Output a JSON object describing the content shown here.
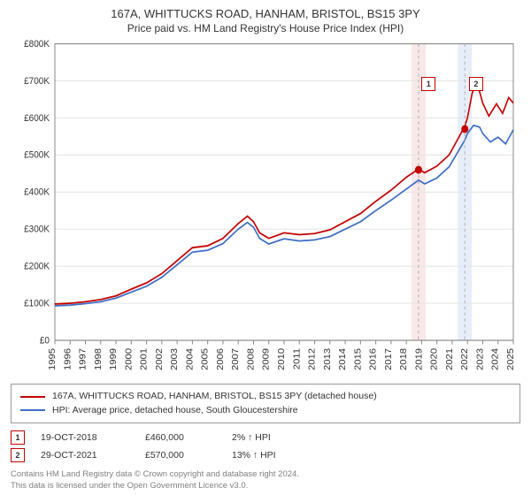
{
  "title": "167A, WHITTUCKS ROAD, HANHAM, BRISTOL, BS15 3PY",
  "subtitle": "Price paid vs. HM Land Registry's House Price Index (HPI)",
  "chart": {
    "type": "line",
    "background_color": "#ffffff",
    "grid_color": "#e6e6e6",
    "axis_color": "#888888",
    "label_fontsize": 10,
    "xlim": [
      1995,
      2025
    ],
    "ylim": [
      0,
      800000
    ],
    "ytick_step": 100000,
    "ytick_labels": [
      "£0",
      "£100K",
      "£200K",
      "£300K",
      "£400K",
      "£500K",
      "£600K",
      "£700K",
      "£800K"
    ],
    "xtick_step": 1,
    "xtick_labels": [
      "1995",
      "1996",
      "1997",
      "1998",
      "1999",
      "2000",
      "2001",
      "2002",
      "2003",
      "2004",
      "2005",
      "2006",
      "2007",
      "2008",
      "2009",
      "2010",
      "2011",
      "2012",
      "2013",
      "2014",
      "2015",
      "2016",
      "2017",
      "2018",
      "2019",
      "2020",
      "2021",
      "2022",
      "2023",
      "2024",
      "2025"
    ],
    "series": [
      {
        "name": "price_paid",
        "color": "#c40000",
        "line_width": 1.6,
        "points": [
          [
            1995,
            98000
          ],
          [
            1996,
            100000
          ],
          [
            1997,
            104000
          ],
          [
            1998,
            110000
          ],
          [
            1999,
            120000
          ],
          [
            2000,
            138000
          ],
          [
            2001,
            155000
          ],
          [
            2002,
            180000
          ],
          [
            2003,
            215000
          ],
          [
            2004,
            250000
          ],
          [
            2005,
            255000
          ],
          [
            2006,
            275000
          ],
          [
            2007,
            315000
          ],
          [
            2007.6,
            335000
          ],
          [
            2008,
            320000
          ],
          [
            2008.4,
            290000
          ],
          [
            2009,
            275000
          ],
          [
            2010,
            290000
          ],
          [
            2011,
            285000
          ],
          [
            2012,
            288000
          ],
          [
            2013,
            298000
          ],
          [
            2014,
            320000
          ],
          [
            2015,
            342000
          ],
          [
            2016,
            375000
          ],
          [
            2017,
            405000
          ],
          [
            2018,
            440000
          ],
          [
            2018.8,
            462000
          ],
          [
            2019.2,
            452000
          ],
          [
            2020,
            470000
          ],
          [
            2020.8,
            500000
          ],
          [
            2021.4,
            545000
          ],
          [
            2021.83,
            578000
          ],
          [
            2022,
            600000
          ],
          [
            2022.3,
            665000
          ],
          [
            2022.6,
            700000
          ],
          [
            2023,
            640000
          ],
          [
            2023.4,
            605000
          ],
          [
            2023.9,
            638000
          ],
          [
            2024.3,
            612000
          ],
          [
            2024.7,
            655000
          ],
          [
            2025,
            640000
          ]
        ]
      },
      {
        "name": "hpi",
        "color": "#3e6ec4",
        "line_width": 1.6,
        "points": [
          [
            1995,
            93000
          ],
          [
            1996,
            95000
          ],
          [
            1997,
            99000
          ],
          [
            1998,
            104000
          ],
          [
            1999,
            114000
          ],
          [
            2000,
            130000
          ],
          [
            2001,
            146000
          ],
          [
            2002,
            170000
          ],
          [
            2003,
            204000
          ],
          [
            2004,
            238000
          ],
          [
            2005,
            243000
          ],
          [
            2006,
            261000
          ],
          [
            2007,
            300000
          ],
          [
            2007.6,
            318000
          ],
          [
            2008,
            305000
          ],
          [
            2008.4,
            275000
          ],
          [
            2009,
            260000
          ],
          [
            2010,
            274000
          ],
          [
            2011,
            268000
          ],
          [
            2012,
            271000
          ],
          [
            2013,
            280000
          ],
          [
            2014,
            300000
          ],
          [
            2015,
            320000
          ],
          [
            2016,
            350000
          ],
          [
            2017,
            378000
          ],
          [
            2018,
            408000
          ],
          [
            2018.8,
            432000
          ],
          [
            2019.2,
            422000
          ],
          [
            2020,
            438000
          ],
          [
            2020.8,
            468000
          ],
          [
            2021.4,
            510000
          ],
          [
            2021.83,
            540000
          ],
          [
            2022,
            558000
          ],
          [
            2022.4,
            580000
          ],
          [
            2022.8,
            575000
          ],
          [
            2023,
            558000
          ],
          [
            2023.5,
            535000
          ],
          [
            2024,
            548000
          ],
          [
            2024.5,
            530000
          ],
          [
            2025,
            568000
          ]
        ]
      }
    ],
    "sale_markers": [
      {
        "n": "1",
        "x": 2018.8,
        "y": 460000,
        "dot_color": "#c40000",
        "band_color": "#f9e8e8",
        "label_pos_x": 2019.4,
        "label_pos_y": 710000,
        "border_color": "#c40000"
      },
      {
        "n": "2",
        "x": 2021.83,
        "y": 570000,
        "dot_color": "#c40000",
        "band_color": "#e8eef9",
        "label_pos_x": 2022.5,
        "label_pos_y": 710000,
        "border_color": "#c40000"
      }
    ]
  },
  "legend": {
    "series1_color": "#c40000",
    "series1_label": "167A, WHITTUCKS ROAD, HANHAM, BRISTOL, BS15 3PY (detached house)",
    "series2_color": "#3e6ec4",
    "series2_label": "HPI: Average price, detached house, South Gloucestershire"
  },
  "sales": [
    {
      "n": "1",
      "border_color": "#c40000",
      "date": "19-OCT-2018",
      "price": "£460,000",
      "diff": "2% ↑ HPI"
    },
    {
      "n": "2",
      "border_color": "#c40000",
      "date": "29-OCT-2021",
      "price": "£570,000",
      "diff": "13% ↑ HPI"
    }
  ],
  "footnote_line1": "Contains HM Land Registry data © Crown copyright and database right 2024.",
  "footnote_line2": "This data is licensed under the Open Government Licence v3.0."
}
